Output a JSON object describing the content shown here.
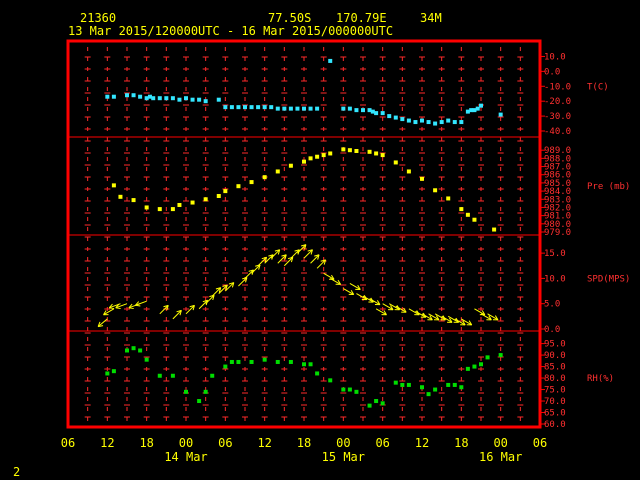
{
  "header": {
    "station_id": "21360",
    "latitude": "77.50S",
    "longitude": "170.79E",
    "elevation": "34M",
    "time_range": "13 Mar 2015/120000UTC - 16 Mar 2015/000000UTC"
  },
  "page_number": "2",
  "colors": {
    "frame": "#ff0000",
    "grid": "#ff2a2a",
    "axis_text": "#ffff00",
    "temperature": "#33e6ff",
    "pressure": "#ffff00",
    "wind": "#ffff00",
    "humidity": "#00dd00"
  },
  "chart_data": {
    "type": "scatter",
    "x_unit": "hours since 13 Mar 2015 06UTC",
    "x_ticks": [
      {
        "label": "06",
        "hour": 0
      },
      {
        "label": "12",
        "hour": 6
      },
      {
        "label": "18",
        "hour": 12
      },
      {
        "label": "00",
        "hour": 18
      },
      {
        "label": "06",
        "hour": 24
      },
      {
        "label": "12",
        "hour": 30
      },
      {
        "label": "18",
        "hour": 36
      },
      {
        "label": "00",
        "hour": 42
      },
      {
        "label": "06",
        "hour": 48
      },
      {
        "label": "12",
        "hour": 54
      },
      {
        "label": "18",
        "hour": 60
      },
      {
        "label": "00",
        "hour": 66
      },
      {
        "label": "06",
        "hour": 72
      }
    ],
    "date_labels": [
      {
        "label": "14 Mar",
        "hour": 18
      },
      {
        "label": "15 Mar",
        "hour": 42
      },
      {
        "label": "16 Mar",
        "hour": 66
      }
    ],
    "xlim": [
      0,
      72
    ],
    "panels": [
      {
        "name": "T(C)",
        "ylim": [
          -40,
          15
        ],
        "ticks": [
          "10.0",
          "0.0",
          "-10.0",
          "-20.0",
          "-30.0",
          "-40.0"
        ],
        "tick_values": [
          10,
          0,
          -10,
          -20,
          -30,
          -40
        ],
        "kind": "points",
        "color": "temperature",
        "x": [
          6,
          7,
          9,
          10,
          11,
          12,
          12.5,
          13,
          14,
          15,
          16,
          17,
          18,
          19,
          20,
          21,
          23,
          24,
          25,
          26,
          27,
          28,
          29,
          30,
          31,
          32,
          33,
          34,
          35,
          36,
          37,
          38,
          40,
          42,
          43,
          44,
          45,
          46,
          46.5,
          47,
          48,
          49,
          50,
          51,
          52,
          53,
          54,
          55,
          56,
          57,
          58,
          59,
          60,
          61,
          61.5,
          62,
          62.5,
          63,
          66
        ],
        "y": [
          -17,
          -17,
          -16,
          -16,
          -17,
          -18,
          -17,
          -18,
          -18,
          -18,
          -18,
          -19,
          -18,
          -19,
          -19,
          -20,
          -19,
          -24,
          -24,
          -24,
          -24,
          -24,
          -24,
          -24,
          -24,
          -25,
          -25,
          -25,
          -25,
          -25,
          -25,
          -25,
          7,
          -25,
          -25,
          -26,
          -26,
          -26,
          -27,
          -28,
          -28,
          -30,
          -31,
          -32,
          -33,
          -34,
          -33,
          -34,
          -35,
          -34,
          -33,
          -34,
          -34,
          -27,
          -26,
          -26,
          -25,
          -23,
          -29
        ]
      },
      {
        "name": "Pre (mb)",
        "ylim": [
          979,
          990
        ],
        "ticks": [
          "989.0",
          "988.0",
          "987.0",
          "986.0",
          "985.0",
          "984.0",
          "983.0",
          "982.0",
          "981.0",
          "980.0",
          "979.0"
        ],
        "tick_values": [
          989,
          988,
          987,
          986,
          985,
          984,
          983,
          982,
          981,
          980,
          979
        ],
        "kind": "points",
        "color": "pressure",
        "x": [
          7,
          8,
          10,
          12,
          14,
          16,
          17,
          19,
          21,
          23,
          24,
          26,
          28,
          30,
          32,
          34,
          36,
          37,
          38,
          39,
          40,
          42,
          43,
          44,
          46,
          47,
          48,
          50,
          52,
          54,
          56,
          58,
          60,
          61,
          62,
          65
        ],
        "y": [
          984.7,
          983.3,
          982.9,
          982.0,
          981.8,
          981.8,
          982.3,
          982.6,
          983.0,
          983.4,
          984.0,
          984.6,
          985.1,
          985.7,
          986.4,
          987.1,
          987.6,
          988.0,
          988.2,
          988.4,
          988.6,
          989.1,
          989.0,
          988.9,
          988.8,
          988.6,
          988.4,
          987.5,
          986.4,
          985.5,
          984.1,
          983.1,
          981.8,
          981.1,
          980.5,
          979.3
        ]
      },
      {
        "name": "SPD(MPS)",
        "ylim": [
          0,
          17
        ],
        "ticks": [
          "15.0",
          "10.0",
          "5.0",
          "0.0"
        ],
        "tick_values": [
          15,
          10,
          5,
          0
        ],
        "kind": "wind_arrows",
        "color": "wind",
        "x": [
          6,
          7,
          8,
          9,
          11,
          12,
          14,
          16,
          18,
          20,
          21,
          22,
          23,
          24,
          26,
          27,
          28,
          29,
          30,
          31,
          32,
          33,
          34,
          35,
          36,
          37,
          38,
          39,
          40,
          42,
          43,
          44,
          45,
          46,
          47,
          48,
          49,
          50,
          52,
          53,
          54,
          55,
          56,
          57,
          58,
          59,
          60,
          62,
          63,
          64
        ],
        "y": [
          2,
          4,
          5,
          5,
          5,
          5.5,
          3,
          2,
          3,
          4,
          5,
          6.5,
          7,
          7.5,
          8.5,
          10,
          11,
          12.5,
          13,
          14,
          13,
          12.5,
          14,
          15,
          14,
          13,
          12,
          11,
          10,
          8,
          9,
          7,
          6.5,
          6,
          4,
          5,
          5,
          4.5,
          4,
          3.5,
          3,
          3,
          3,
          2.5,
          2.5,
          2,
          2,
          4,
          3,
          3
        ],
        "dir_deg": [
          220,
          210,
          200,
          200,
          200,
          200,
          45,
          45,
          45,
          45,
          45,
          45,
          45,
          45,
          45,
          45,
          45,
          45,
          45,
          45,
          45,
          45,
          45,
          45,
          45,
          45,
          45,
          330,
          330,
          330,
          330,
          330,
          330,
          330,
          330,
          330,
          330,
          330,
          330,
          330,
          330,
          330,
          330,
          330,
          330,
          330,
          330,
          330,
          330,
          330
        ]
      },
      {
        "name": "RH(%)",
        "ylim": [
          60,
          97
        ],
        "ticks": [
          "95.0",
          "90.0",
          "85.0",
          "80.0",
          "75.0",
          "70.0",
          "65.0",
          "60.0"
        ],
        "tick_values": [
          95,
          90,
          85,
          80,
          75,
          70,
          65,
          60
        ],
        "kind": "points",
        "color": "humidity",
        "x": [
          6,
          7,
          9,
          10,
          11,
          12,
          14,
          16,
          18,
          20,
          21,
          22,
          24,
          25,
          26,
          28,
          30,
          32,
          34,
          36,
          37,
          38,
          40,
          42,
          43,
          44,
          46,
          47,
          48,
          50,
          51,
          52,
          54,
          55,
          56,
          58,
          59,
          60,
          61,
          62,
          63,
          64,
          66
        ],
        "y": [
          82,
          83,
          92,
          93,
          92,
          88,
          81,
          81,
          74,
          70,
          74,
          81,
          85,
          87,
          87,
          87,
          88,
          87,
          87,
          86,
          86,
          82,
          79,
          75,
          75,
          74,
          68,
          70,
          69,
          78,
          77,
          77,
          76,
          73,
          75,
          77,
          77,
          76,
          84,
          85,
          86,
          89,
          90
        ]
      }
    ]
  }
}
